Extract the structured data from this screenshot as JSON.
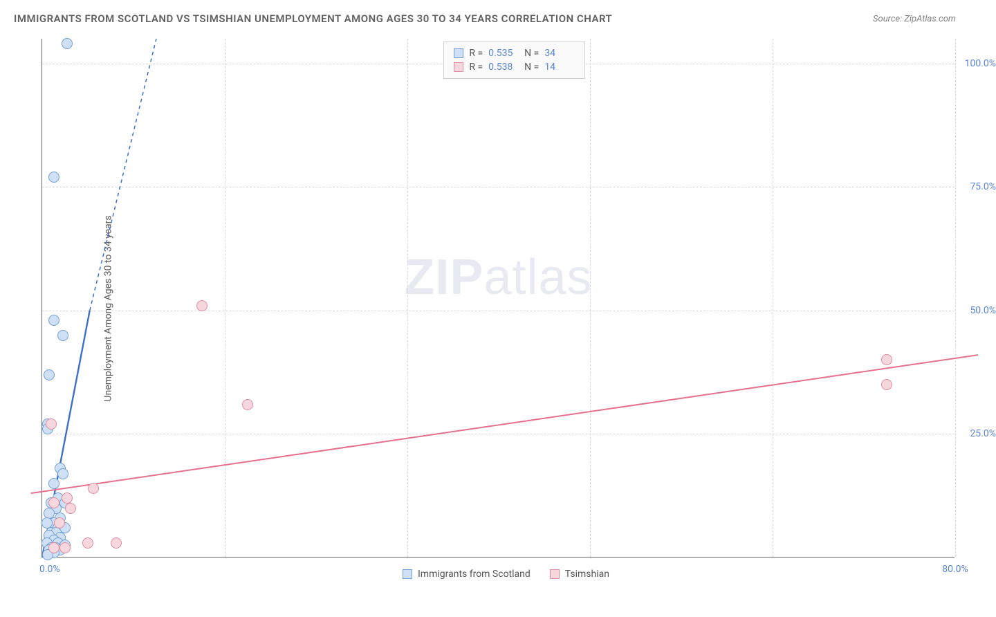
{
  "title": "IMMIGRANTS FROM SCOTLAND VS TSIMSHIAN UNEMPLOYMENT AMONG AGES 30 TO 34 YEARS CORRELATION CHART",
  "source": "Source: ZipAtlas.com",
  "watermark_bold": "ZIP",
  "watermark_rest": "atlas",
  "chart": {
    "type": "scatter",
    "y_label": "Unemployment Among Ages 30 to 34 years",
    "xlim": [
      0,
      80
    ],
    "ylim": [
      0,
      105
    ],
    "y_ticks": [
      25,
      50,
      75,
      100
    ],
    "y_tick_labels": [
      "25.0%",
      "50.0%",
      "75.0%",
      "100.0%"
    ],
    "x_origin_label": "0.0%",
    "x_end_label": "80.0%",
    "x_grid_count": 5,
    "grid_color": "#d8d8d8",
    "background_color": "#ffffff",
    "marker_radius": 8,
    "marker_stroke_width": 1.2,
    "series": [
      {
        "name": "Immigrants from Scotland",
        "fill": "#cfe0f5",
        "stroke": "#6f9fd8",
        "line_color": "#3c6fc9",
        "line_width": 2.4,
        "dash": "5 5",
        "R": "0.535",
        "N": "34",
        "trend": {
          "x1": 0,
          "y1": 0,
          "x2": 10,
          "y2": 120,
          "solid_until_y": 50
        },
        "points": [
          [
            2.2,
            104
          ],
          [
            1.0,
            77
          ],
          [
            1.0,
            48
          ],
          [
            1.8,
            45
          ],
          [
            0.6,
            37
          ],
          [
            0.5,
            27
          ],
          [
            0.5,
            26
          ],
          [
            1.6,
            18
          ],
          [
            1.8,
            17
          ],
          [
            1.0,
            15
          ],
          [
            1.4,
            12
          ],
          [
            2.0,
            11
          ],
          [
            0.8,
            11
          ],
          [
            1.2,
            10
          ],
          [
            0.6,
            9
          ],
          [
            1.6,
            8
          ],
          [
            1.0,
            7
          ],
          [
            0.4,
            7
          ],
          [
            1.4,
            6
          ],
          [
            2.0,
            6
          ],
          [
            0.8,
            5
          ],
          [
            1.2,
            5
          ],
          [
            0.6,
            4.5
          ],
          [
            1.6,
            4
          ],
          [
            1.0,
            3.5
          ],
          [
            0.4,
            3
          ],
          [
            1.4,
            3
          ],
          [
            2.0,
            2.5
          ],
          [
            0.8,
            2
          ],
          [
            1.2,
            2
          ],
          [
            0.6,
            1.5
          ],
          [
            1.6,
            1.5
          ],
          [
            1.0,
            1
          ],
          [
            0.5,
            0.5
          ]
        ]
      },
      {
        "name": "Tsimshian",
        "fill": "#f7d7de",
        "stroke": "#e28ba0",
        "line_color": "#e56f8d",
        "line_width": 2,
        "dash": "",
        "R": "0.538",
        "N": "14",
        "trend": {
          "x1": -1,
          "y1": 13,
          "x2": 82,
          "y2": 41
        },
        "points": [
          [
            14,
            51
          ],
          [
            18,
            31
          ],
          [
            74,
            40
          ],
          [
            74,
            35
          ],
          [
            0.8,
            27
          ],
          [
            4.5,
            14
          ],
          [
            2.2,
            12
          ],
          [
            1.0,
            11
          ],
          [
            2.5,
            10
          ],
          [
            1.5,
            7
          ],
          [
            4.0,
            3
          ],
          [
            6.5,
            3
          ],
          [
            1.0,
            2
          ],
          [
            2.0,
            2
          ]
        ]
      }
    ],
    "bottom_legend": [
      {
        "label": "Immigrants from Scotland",
        "fill": "#cfe0f5",
        "stroke": "#6f9fd8"
      },
      {
        "label": "Tsimshian",
        "fill": "#f7d7de",
        "stroke": "#e28ba0"
      }
    ]
  }
}
